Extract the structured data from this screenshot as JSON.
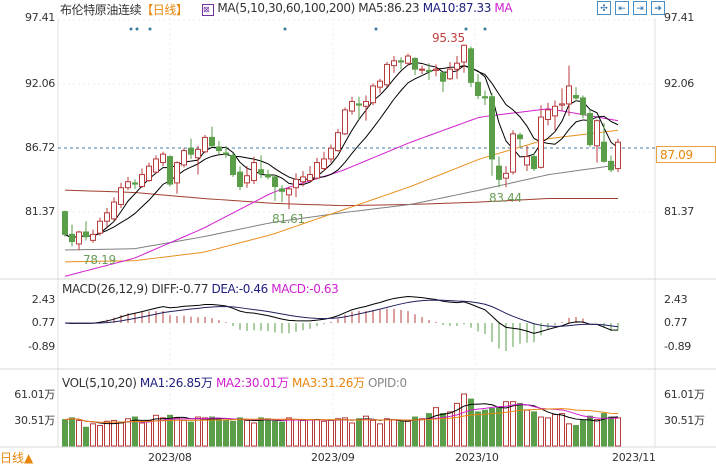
{
  "header": {
    "title": "布伦特原油连续",
    "period": "【日线】",
    "ma_label": "MA(5,10,30,60,100,200)",
    "ma5": "MA5:86.23",
    "ma10": "MA10:87.33",
    "ma_more": "MA"
  },
  "toolbar": [
    {
      "icon": "crosshair-icon",
      "glyph": "✣"
    },
    {
      "icon": "chart-prev-icon",
      "glyph": "⇤"
    },
    {
      "icon": "chart-next-icon",
      "glyph": "⇥"
    },
    {
      "icon": "exit-icon",
      "glyph": "➔"
    }
  ],
  "price_axis": {
    "left": [
      "97.41",
      "92.06",
      "86.72",
      "81.37"
    ],
    "right": [
      "97.41",
      "92.06",
      "81.37"
    ],
    "current": "87.09"
  },
  "annotations": {
    "high": "95.35",
    "low1": "78.19",
    "low2": "81.61",
    "low3": "83.44"
  },
  "macd": {
    "label": "MACD(26,12,9)",
    "diff": "DIFF:-0.77",
    "dea": "DEA:-0.46",
    "macd": "MACD:-0.63",
    "axis": [
      "2.43",
      "0.77",
      "-0.89"
    ]
  },
  "vol": {
    "label": "VOL(5,10,20)",
    "ma1": "MA1:26.85万",
    "ma2": "MA2:30.01万",
    "ma3": "MA3:31.26万",
    "opid": "OPID:0",
    "axis": [
      "61.01万",
      "30.51万"
    ]
  },
  "dates": [
    "2023/08",
    "2023/09",
    "2023/10",
    "2023/11"
  ],
  "period_switch": "日线▲",
  "colors": {
    "up": "#b83c3c",
    "down": "#5a9e4a",
    "ma5": "#000000",
    "ma10": "#000000",
    "ma30": "#d020d0",
    "ma60": "#e89020",
    "ma100": "#808080",
    "ma200": "#a04030",
    "accent": "#e8860c"
  },
  "chart_data": {
    "type": "candlestick",
    "price_range": [
      78.0,
      97.41
    ],
    "candles": [
      [
        81.4,
        81.5,
        79.3,
        79.5
      ],
      [
        79.5,
        80.3,
        78.5,
        78.9
      ],
      [
        78.7,
        79.8,
        78.19,
        79.7
      ],
      [
        79.7,
        80.6,
        79.0,
        79.3
      ],
      [
        79.0,
        79.9,
        78.8,
        79.5
      ],
      [
        79.6,
        80.9,
        79.4,
        80.6
      ],
      [
        80.6,
        81.7,
        80.1,
        81.3
      ],
      [
        80.8,
        82.6,
        80.6,
        82.2
      ],
      [
        82.0,
        83.8,
        81.7,
        83.4
      ],
      [
        83.4,
        84.3,
        83.2,
        83.9
      ],
      [
        83.8,
        84.1,
        83.3,
        83.7
      ],
      [
        83.5,
        85.0,
        83.4,
        84.5
      ],
      [
        84.0,
        85.5,
        83.9,
        85.2
      ],
      [
        84.7,
        86.1,
        84.6,
        85.8
      ],
      [
        85.5,
        86.4,
        85.2,
        86.2
      ],
      [
        86.0,
        86.1,
        83.5,
        83.7
      ],
      [
        83.8,
        85.6,
        82.9,
        85.5
      ],
      [
        85.3,
        86.7,
        85.1,
        86.5
      ],
      [
        86.7,
        87.5,
        85.8,
        86.2
      ],
      [
        85.9,
        86.9,
        84.5,
        86.6
      ],
      [
        86.4,
        87.8,
        86.3,
        87.6
      ],
      [
        87.6,
        88.5,
        86.8,
        86.9
      ],
      [
        86.8,
        87.3,
        86.2,
        86.5
      ],
      [
        86.3,
        86.9,
        85.9,
        86.2
      ],
      [
        86.1,
        86.3,
        84.3,
        84.5
      ],
      [
        84.7,
        85.2,
        83.2,
        83.5
      ],
      [
        83.8,
        85.2,
        83.4,
        84.4
      ],
      [
        84.0,
        86.0,
        83.7,
        85.5
      ],
      [
        84.9,
        86.1,
        84.2,
        84.6
      ],
      [
        84.5,
        84.9,
        84.1,
        84.3
      ],
      [
        84.3,
        84.5,
        82.3,
        83.5
      ],
      [
        83.3,
        83.6,
        82.2,
        83.1
      ],
      [
        82.8,
        83.5,
        81.61,
        83.3
      ],
      [
        83.4,
        84.6,
        82.6,
        84.1
      ],
      [
        83.9,
        84.8,
        83.5,
        84.3
      ],
      [
        84.0,
        85.2,
        83.8,
        84.5
      ],
      [
        84.2,
        85.9,
        84.1,
        85.5
      ],
      [
        85.0,
        86.4,
        84.8,
        85.8
      ],
      [
        85.8,
        87.0,
        85.5,
        86.7
      ],
      [
        86.5,
        88.3,
        86.4,
        88.0
      ],
      [
        87.9,
        90.1,
        87.8,
        89.9
      ],
      [
        89.8,
        91.0,
        89.5,
        90.6
      ],
      [
        90.4,
        91.0,
        89.1,
        90.3
      ],
      [
        90.2,
        91.1,
        89.0,
        90.6
      ],
      [
        90.5,
        92.1,
        90.3,
        91.9
      ],
      [
        91.8,
        92.5,
        91.3,
        92.3
      ],
      [
        92.0,
        93.9,
        91.8,
        93.7
      ],
      [
        93.6,
        94.4,
        93.0,
        94.0
      ],
      [
        94.0,
        94.3,
        93.3,
        93.9
      ],
      [
        93.8,
        94.6,
        93.6,
        94.4
      ],
      [
        94.2,
        94.3,
        92.8,
        93.3
      ],
      [
        93.3,
        93.6,
        92.9,
        93.3
      ],
      [
        93.2,
        93.8,
        92.4,
        93.1
      ],
      [
        93.2,
        93.7,
        92.7,
        93.3
      ],
      [
        93.0,
        93.1,
        91.4,
        92.3
      ],
      [
        92.5,
        93.9,
        92.4,
        93.3
      ],
      [
        93.3,
        94.4,
        92.5,
        93.8
      ],
      [
        93.9,
        95.35,
        93.0,
        95.3
      ],
      [
        95.0,
        95.2,
        91.8,
        92.2
      ],
      [
        92.2,
        92.9,
        90.8,
        91.1
      ],
      [
        91.0,
        91.5,
        90.3,
        90.9
      ],
      [
        91.0,
        91.3,
        84.4,
        85.8
      ],
      [
        85.2,
        86.0,
        83.44,
        84.1
      ],
      [
        84.2,
        85.2,
        83.44,
        84.6
      ],
      [
        84.7,
        88.2,
        84.5,
        87.9
      ],
      [
        87.8,
        88.0,
        86.8,
        87.5
      ],
      [
        85.3,
        86.9,
        84.8,
        86.0
      ],
      [
        86.0,
        86.3,
        84.8,
        85.0
      ],
      [
        85.1,
        90.3,
        85.0,
        89.3
      ],
      [
        89.1,
        90.5,
        88.6,
        89.9
      ],
      [
        89.4,
        90.7,
        88.2,
        90.2
      ],
      [
        90.3,
        91.7,
        89.8,
        90.4
      ],
      [
        90.4,
        93.6,
        89.4,
        91.9
      ],
      [
        91.1,
        91.8,
        90.6,
        90.9
      ],
      [
        90.9,
        91.1,
        89.2,
        89.5
      ],
      [
        89.6,
        89.9,
        86.8,
        87.0
      ],
      [
        86.9,
        89.1,
        85.5,
        89.0
      ],
      [
        87.2,
        88.8,
        85.5,
        85.6
      ],
      [
        85.6,
        86.1,
        84.7,
        84.9
      ],
      [
        85.0,
        87.5,
        84.7,
        87.2
      ]
    ],
    "ma_anchors": {
      "ma30": [
        76.0,
        77.5,
        80.0,
        83.0,
        84.8,
        87.2,
        89.3,
        90.0,
        89.0
      ],
      "ma60": [
        77.2,
        77.3,
        78.0,
        79.5,
        81.5,
        83.5,
        85.8,
        87.5,
        88.2
      ],
      "ma100": [
        78.2,
        78.3,
        79.3,
        80.5,
        81.3,
        82.0,
        83.2,
        84.5,
        85.3
      ],
      "ma200": [
        83.2,
        83.0,
        82.5,
        82.1,
        81.9,
        82.0,
        82.2,
        82.5,
        82.5
      ]
    },
    "volume": [
      31,
      33,
      30,
      22,
      26,
      24,
      29,
      30,
      27,
      32,
      34,
      27,
      30,
      36,
      33,
      36,
      33,
      30,
      28,
      34,
      33,
      34,
      31,
      30,
      29,
      33,
      30,
      27,
      33,
      32,
      29,
      28,
      33,
      31,
      30,
      31,
      31,
      29,
      30,
      32,
      33,
      27,
      32,
      35,
      30,
      26,
      32,
      31,
      28,
      29,
      34,
      32,
      38,
      45,
      38,
      40,
      50,
      61,
      55,
      40,
      42,
      44,
      45,
      52,
      52,
      50,
      42,
      40,
      34,
      33,
      37,
      38,
      26,
      24,
      30,
      35,
      31,
      38,
      34,
      33
    ],
    "volume_range": [
      0,
      70
    ]
  }
}
